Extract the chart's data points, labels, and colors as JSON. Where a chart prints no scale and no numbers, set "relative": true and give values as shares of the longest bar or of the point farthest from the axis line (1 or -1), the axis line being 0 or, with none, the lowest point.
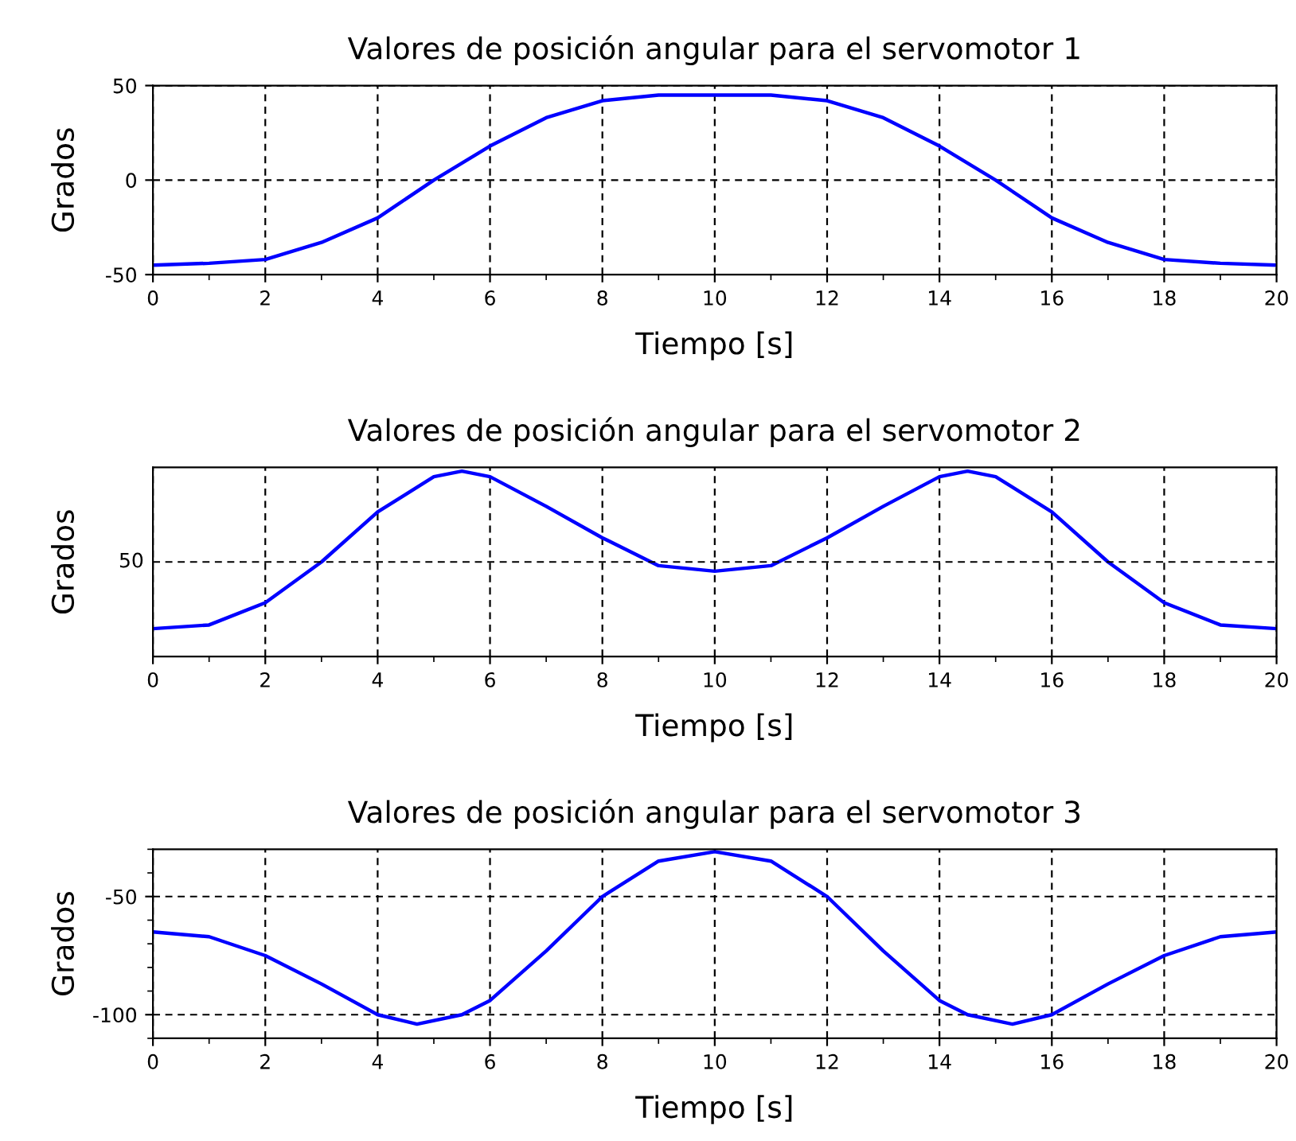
{
  "chart_data": [
    {
      "type": "line",
      "title": "Valores de posición angular para el servomotor 1",
      "xlabel": "Tiempo [s]",
      "ylabel": "Grados",
      "grid": true,
      "line_style": "solid",
      "xlim": [
        0,
        20
      ],
      "ylim": [
        -50,
        50
      ],
      "xticks": [
        0,
        {
          "value": 1,
          "label": null
        },
        2,
        {
          "value": 3,
          "label": null
        },
        4,
        {
          "value": 5,
          "label": null
        },
        6,
        {
          "value": 7,
          "label": null
        },
        8,
        {
          "value": 9,
          "label": null
        },
        10,
        {
          "value": 11,
          "label": null
        },
        12,
        {
          "value": 13,
          "label": null
        },
        14,
        {
          "value": 15,
          "label": null
        },
        16,
        {
          "value": 17,
          "label": null
        },
        18,
        {
          "value": 19,
          "label": null
        },
        20
      ],
      "yticks": [
        -50,
        0,
        50
      ],
      "x": [
        0,
        1,
        2,
        3,
        4,
        5,
        6,
        7,
        8,
        9,
        10,
        11,
        12,
        13,
        14,
        15,
        16,
        17,
        18,
        19,
        20
      ],
      "series": [
        {
          "color": "#0000ff",
          "values": [
            -45,
            -44,
            -42,
            -33,
            -20,
            0,
            18,
            33,
            42,
            45,
            45,
            45,
            42,
            33,
            18,
            0,
            -20,
            -33,
            -42,
            -44,
            -45
          ]
        }
      ]
    },
    {
      "type": "line",
      "title": "Valores de posición angular para el servomotor 2",
      "xlabel": "Tiempo [s]",
      "ylabel": "Grados",
      "grid": "x",
      "relative": true,
      "line_style": "solid",
      "xlim": [
        0,
        20
      ],
      "ref_lines": [
        {
          "axis": "y",
          "value": 0.51,
          "color": "#000000",
          "line_style": "dashed"
        }
      ],
      "annotations": [
        "50"
      ],
      "xticks": [
        0,
        {
          "value": 1,
          "label": null
        },
        2,
        {
          "value": 3,
          "label": null
        },
        4,
        {
          "value": 5,
          "label": null
        },
        6,
        {
          "value": 7,
          "label": null
        },
        8,
        {
          "value": 9,
          "label": null
        },
        10,
        {
          "value": 11,
          "label": null
        },
        12,
        {
          "value": 13,
          "label": null
        },
        14,
        {
          "value": 15,
          "label": null
        },
        16,
        {
          "value": 17,
          "label": null
        },
        18,
        {
          "value": 19,
          "label": null
        },
        20
      ],
      "x": [
        0,
        1,
        2,
        3,
        4,
        5,
        5.5,
        6,
        7,
        8,
        9,
        10,
        11,
        12,
        13,
        14,
        14.5,
        15,
        16,
        17,
        18,
        19,
        20
      ],
      "series": [
        {
          "color": "#0000ff",
          "values": [
            0.15,
            0.17,
            0.29,
            0.51,
            0.78,
            0.97,
            1,
            0.97,
            0.81,
            0.64,
            0.49,
            0.46,
            0.49,
            0.64,
            0.81,
            0.97,
            1,
            0.97,
            0.78,
            0.51,
            0.29,
            0.17,
            0.15
          ]
        }
      ]
    },
    {
      "type": "line",
      "title": "Valores de posición angular para el servomotor 3",
      "xlabel": "Tiempo [s]",
      "ylabel": "Grados",
      "grid": true,
      "line_style": "solid",
      "xlim": [
        0,
        20
      ],
      "ylim": [
        -110,
        -30
      ],
      "xticks": [
        0,
        {
          "value": 1,
          "label": null
        },
        2,
        {
          "value": 3,
          "label": null
        },
        4,
        {
          "value": 5,
          "label": null
        },
        6,
        {
          "value": 7,
          "label": null
        },
        8,
        {
          "value": 9,
          "label": null
        },
        10,
        {
          "value": 11,
          "label": null
        },
        12,
        {
          "value": 13,
          "label": null
        },
        14,
        {
          "value": 15,
          "label": null
        },
        16,
        {
          "value": 17,
          "label": null
        },
        18,
        {
          "value": 19,
          "label": null
        },
        20
      ],
      "yticks": [
        {
          "value": -110,
          "label": null
        },
        -100,
        {
          "value": -90,
          "label": null
        },
        {
          "value": -80,
          "label": null
        },
        {
          "value": -70,
          "label": null
        },
        {
          "value": -60,
          "label": null
        },
        -50,
        {
          "value": -40,
          "label": null
        },
        {
          "value": -30,
          "label": null
        }
      ],
      "x": [
        0,
        1,
        2,
        3,
        4,
        4.7,
        5.5,
        6,
        7,
        8,
        9,
        10,
        11,
        12,
        13,
        14,
        14.5,
        15.3,
        16,
        17,
        18,
        19,
        20
      ],
      "series": [
        {
          "color": "#0000ff",
          "values": [
            -65,
            -67,
            -75,
            -87,
            -100,
            -104,
            -100,
            -94,
            -73,
            -50,
            -35,
            -31,
            -35,
            -50,
            -73,
            -94,
            -100,
            -104,
            -100,
            -87,
            -75,
            -67,
            -65
          ]
        }
      ]
    }
  ]
}
